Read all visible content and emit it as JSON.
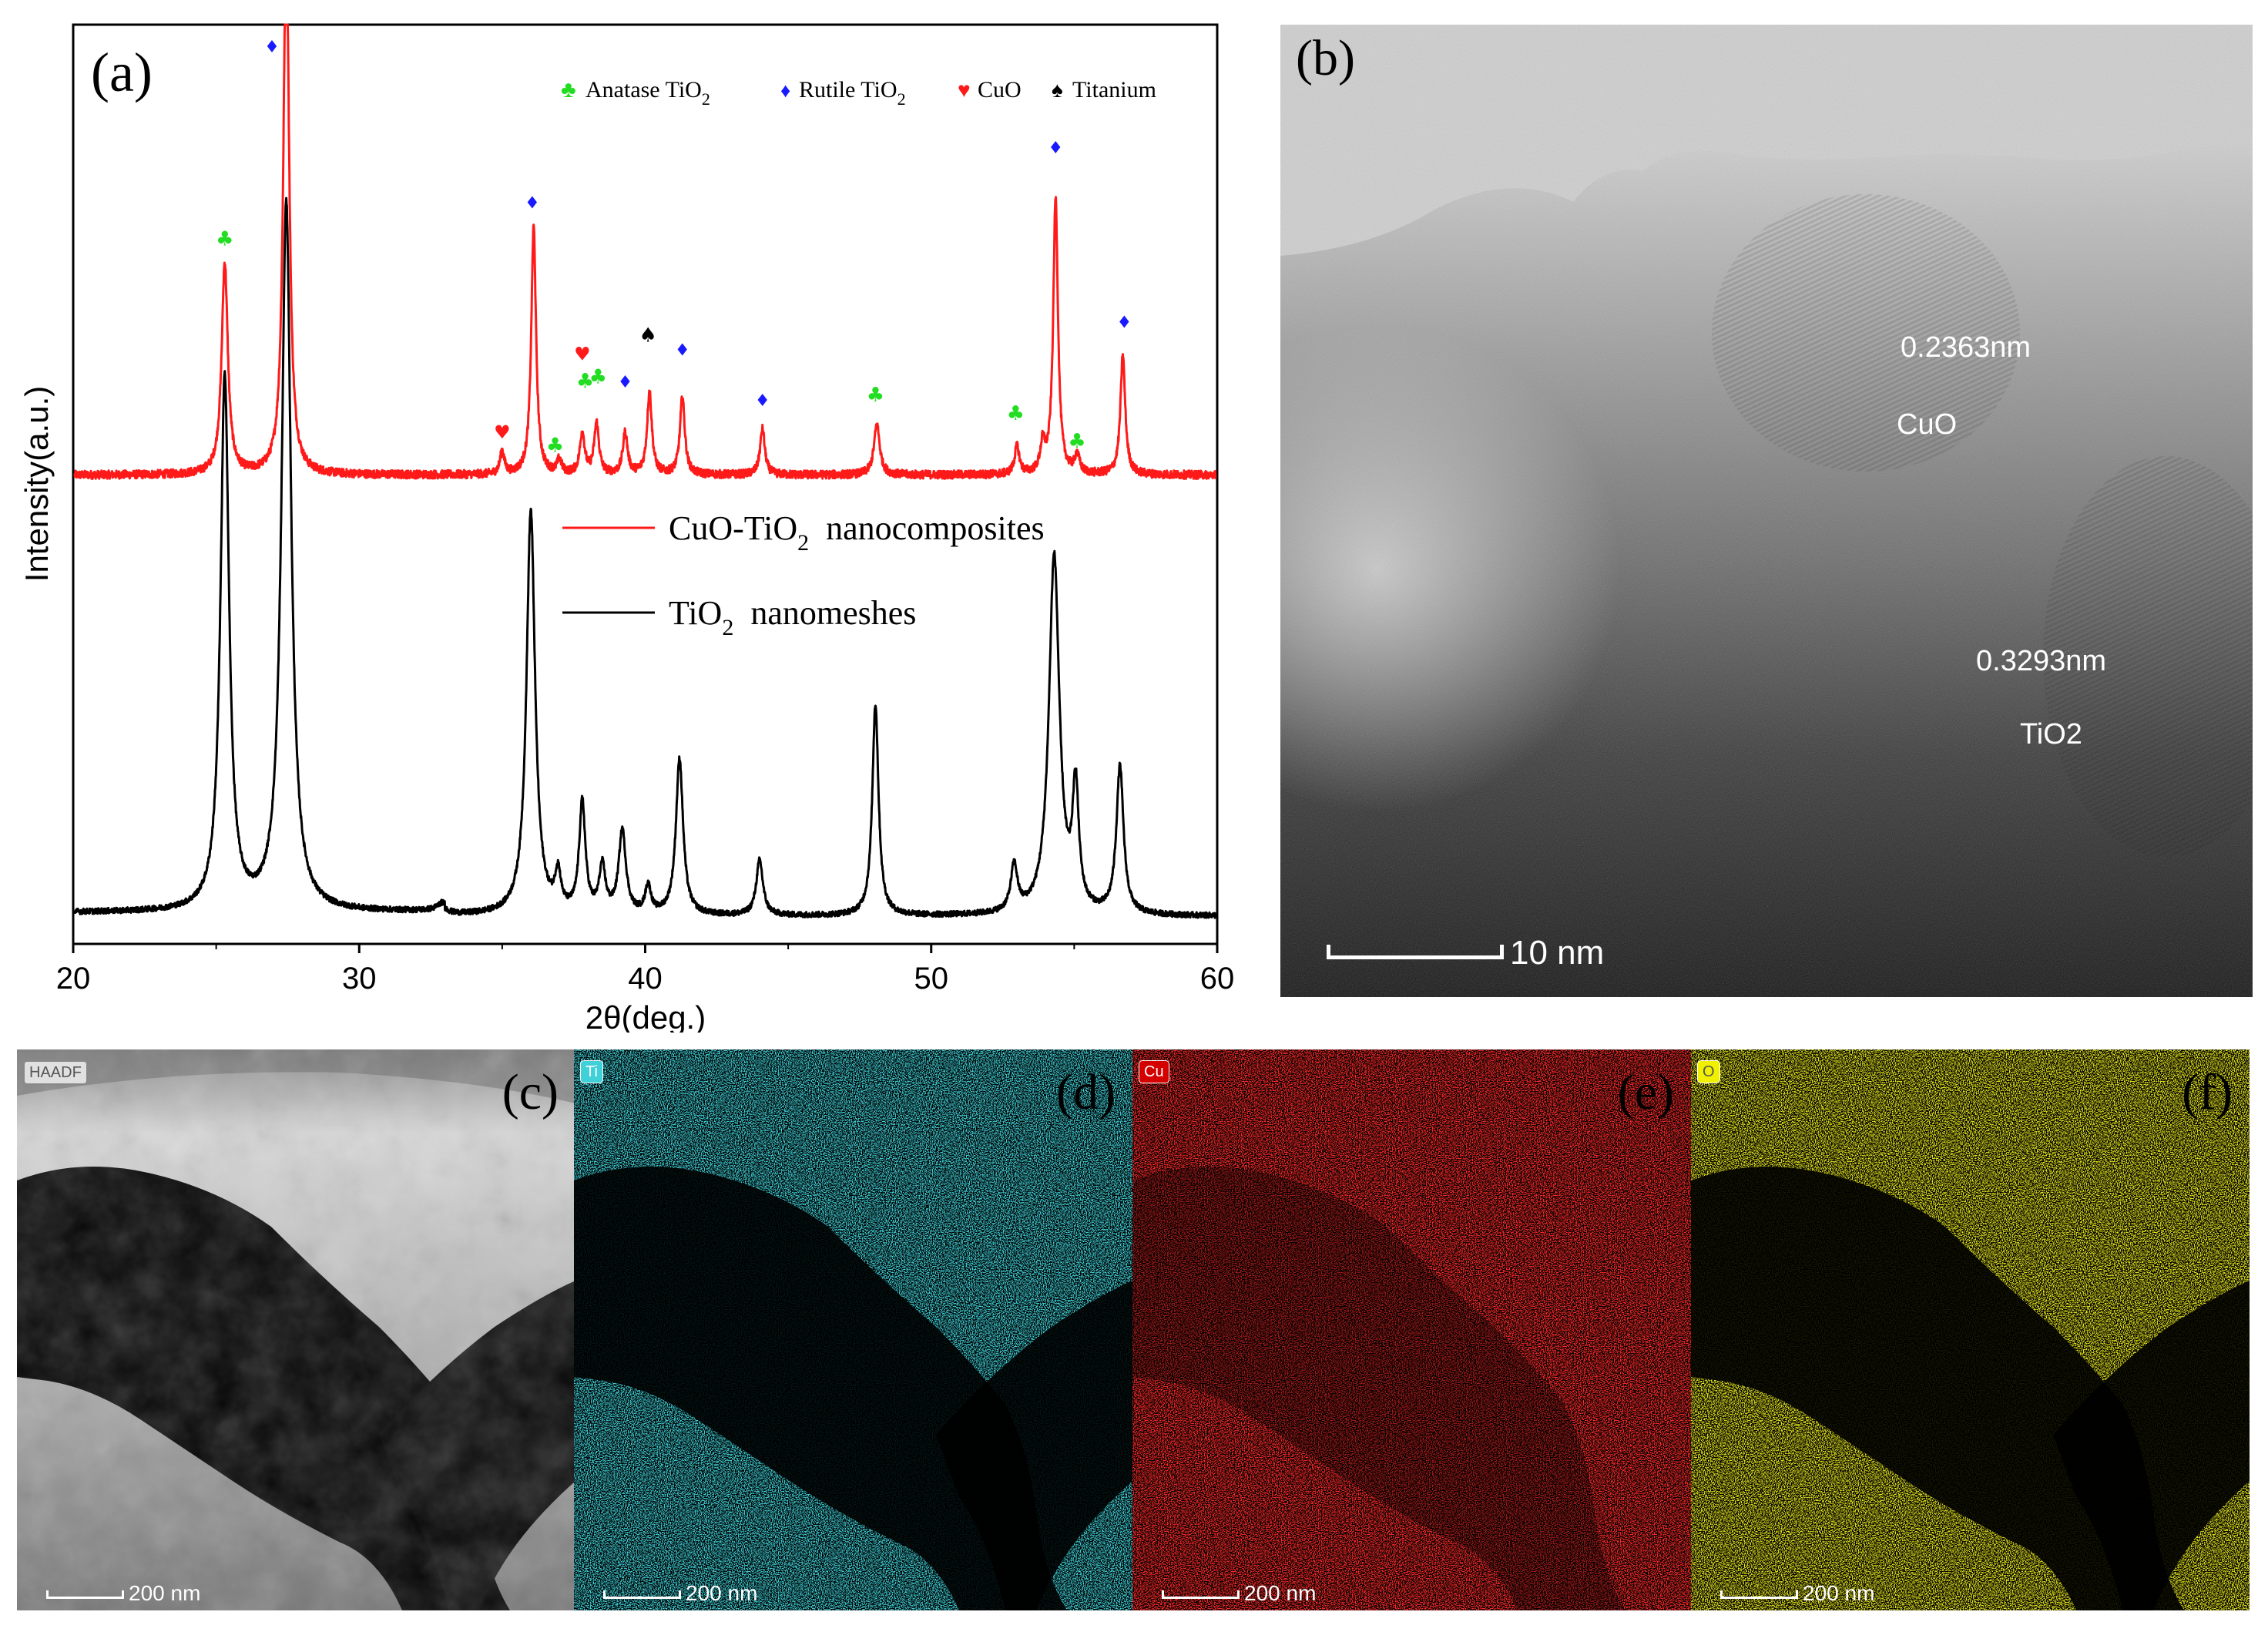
{
  "colors": {
    "red": "#ff1a1a",
    "black": "#000000",
    "anatase": "#22dd22",
    "rutile": "#1a1aff",
    "cuo": "#ff1a1a",
    "titanium": "#000000",
    "ti_map": "#3fd0d8",
    "cu_map": "#ff2a2a",
    "o_map": "#e6e61e"
  },
  "chart_data": {
    "type": "line",
    "panel_label": "(a)",
    "xlabel": "2θ(deg.)",
    "ylabel": "Intensity(a.u.)",
    "xlim": [
      20,
      60
    ],
    "xticks": [
      "20",
      "30",
      "40",
      "50",
      "60"
    ],
    "ylim": [
      0,
      100
    ],
    "legend": {
      "position": "middle-right",
      "entries": [
        {
          "name": "CuO-TiO2 nanocomposites",
          "base": "CuO-TiO",
          "sub": "2",
          "tail": "  nanocomposites",
          "color": "red"
        },
        {
          "name": "TiO2 nanomeshes",
          "base": "TiO",
          "sub": "2",
          "tail": "  nanomeshes",
          "color": "black"
        }
      ]
    },
    "marker_legend": [
      {
        "symbol": "♣",
        "kind": "anatase",
        "base": "Anatase TiO",
        "sub": "2"
      },
      {
        "symbol": "♦",
        "kind": "rutile",
        "base": "Rutile TiO",
        "sub": "2"
      },
      {
        "symbol": "♥",
        "kind": "cuo",
        "base": "CuO",
        "sub": ""
      },
      {
        "symbol": "♠",
        "kind": "titanium",
        "base": "Titanium",
        "sub": ""
      }
    ],
    "series": [
      {
        "name": "CuO-TiO2 nanocomposites",
        "color": "red",
        "baseline": 51,
        "peaks": [
          {
            "x": 25.3,
            "h": 23,
            "w": 0.13
          },
          {
            "x": 27.45,
            "h": 60,
            "w": 0.12
          },
          {
            "x": 35.0,
            "h": 2.5,
            "w": 0.09
          },
          {
            "x": 36.1,
            "h": 27,
            "w": 0.1
          },
          {
            "x": 37.0,
            "h": 1.5,
            "w": 0.09
          },
          {
            "x": 37.8,
            "h": 4.5,
            "w": 0.1
          },
          {
            "x": 38.3,
            "h": 5.5,
            "w": 0.1
          },
          {
            "x": 39.3,
            "h": 4.5,
            "w": 0.1
          },
          {
            "x": 40.15,
            "h": 9,
            "w": 0.1
          },
          {
            "x": 41.3,
            "h": 8.5,
            "w": 0.1
          },
          {
            "x": 44.1,
            "h": 5,
            "w": 0.1
          },
          {
            "x": 48.1,
            "h": 5.5,
            "w": 0.12
          },
          {
            "x": 53.0,
            "h": 3,
            "w": 0.1
          },
          {
            "x": 53.9,
            "h": 3,
            "w": 0.1
          },
          {
            "x": 54.35,
            "h": 30,
            "w": 0.1
          },
          {
            "x": 55.1,
            "h": 2,
            "w": 0.1
          },
          {
            "x": 56.7,
            "h": 13,
            "w": 0.1
          }
        ]
      },
      {
        "name": "TiO2 nanomeshes",
        "color": "black",
        "baseline": 3,
        "peaks": [
          {
            "x": 25.3,
            "h": 58,
            "w": 0.18
          },
          {
            "x": 27.45,
            "h": 77,
            "w": 0.2
          },
          {
            "x": 32.9,
            "h": 0.8,
            "w": 0.2
          },
          {
            "x": 36.0,
            "h": 44,
            "w": 0.18
          },
          {
            "x": 36.95,
            "h": 4,
            "w": 0.12
          },
          {
            "x": 37.8,
            "h": 12,
            "w": 0.13
          },
          {
            "x": 38.5,
            "h": 5,
            "w": 0.13
          },
          {
            "x": 39.2,
            "h": 9,
            "w": 0.15
          },
          {
            "x": 40.1,
            "h": 3,
            "w": 0.12
          },
          {
            "x": 41.2,
            "h": 17,
            "w": 0.15
          },
          {
            "x": 44.0,
            "h": 6,
            "w": 0.14
          },
          {
            "x": 48.05,
            "h": 23,
            "w": 0.13
          },
          {
            "x": 52.9,
            "h": 5,
            "w": 0.14
          },
          {
            "x": 54.3,
            "h": 39,
            "w": 0.22
          },
          {
            "x": 55.05,
            "h": 13,
            "w": 0.13
          },
          {
            "x": 56.6,
            "h": 16,
            "w": 0.15
          }
        ]
      }
    ],
    "markers": [
      {
        "x": 25.3,
        "y": 76,
        "kind": "anatase"
      },
      {
        "x": 26.95,
        "y": 97,
        "kind": "rutile"
      },
      {
        "x": 35.0,
        "y": 55,
        "kind": "cuo"
      },
      {
        "x": 36.05,
        "y": 80,
        "kind": "rutile"
      },
      {
        "x": 36.85,
        "y": 53.5,
        "kind": "anatase"
      },
      {
        "x": 37.8,
        "y": 63.5,
        "kind": "cuo"
      },
      {
        "x": 37.9,
        "y": 60.5,
        "kind": "anatase"
      },
      {
        "x": 38.35,
        "y": 61,
        "kind": "anatase"
      },
      {
        "x": 39.3,
        "y": 60.5,
        "kind": "rutile"
      },
      {
        "x": 40.1,
        "y": 65.5,
        "kind": "titanium"
      },
      {
        "x": 41.3,
        "y": 64,
        "kind": "rutile"
      },
      {
        "x": 44.1,
        "y": 58.5,
        "kind": "rutile"
      },
      {
        "x": 48.05,
        "y": 59,
        "kind": "anatase"
      },
      {
        "x": 52.95,
        "y": 57,
        "kind": "anatase"
      },
      {
        "x": 54.35,
        "y": 86,
        "kind": "rutile"
      },
      {
        "x": 55.1,
        "y": 54,
        "kind": "anatase"
      },
      {
        "x": 56.75,
        "y": 67,
        "kind": "rutile"
      }
    ]
  },
  "panel_b": {
    "label": "(b)",
    "annotations": [
      "0.2363nm",
      "CuO",
      "0.3293nm",
      "TiO2"
    ],
    "scale_bar": "10 nm"
  },
  "map_panels": [
    {
      "id": "c",
      "label": "(c)",
      "badge": "HAADF",
      "scale_bar": "200 nm",
      "kind": "haadf"
    },
    {
      "id": "d",
      "label": "(d)",
      "badge": "Ti",
      "scale_bar": "200 nm",
      "kind": "ti"
    },
    {
      "id": "e",
      "label": "(e)",
      "badge": "Cu",
      "scale_bar": "200 nm",
      "kind": "cu"
    },
    {
      "id": "f",
      "label": "(f)",
      "badge": "O",
      "scale_bar": "200 nm",
      "kind": "o"
    }
  ]
}
